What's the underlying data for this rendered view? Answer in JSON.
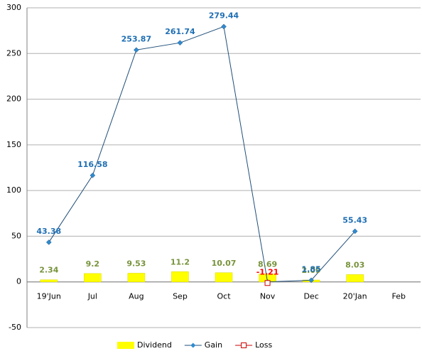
{
  "chart_data": {
    "type": "bar-line",
    "categories": [
      "19'Jun",
      "Jul",
      "Aug",
      "Sep",
      "Oct",
      "Nov",
      "Dec",
      "20'Jan",
      "Feb"
    ],
    "series": [
      {
        "name": "Dividend",
        "type": "bar",
        "color": "#ffff00",
        "label_color": "#77933c",
        "values": [
          2.34,
          9.2,
          9.53,
          11.2,
          10.07,
          8.69,
          2.09,
          8.03,
          null
        ]
      },
      {
        "name": "Gain",
        "type": "line",
        "color": "#1f4e79",
        "marker_color": "#2e8bd0",
        "label_color": "#1f6fb4",
        "values": [
          43.38,
          116.58,
          253.87,
          261.74,
          279.44,
          0,
          1.85,
          55.43,
          null
        ],
        "value_labels": [
          "43.38",
          "116.58",
          "253.87",
          "261.74",
          "279.44",
          null,
          "1.85",
          "55.43",
          null
        ]
      },
      {
        "name": "Loss",
        "type": "marker",
        "color": "#cc0000",
        "label_color": "#ff0000",
        "values": [
          null,
          null,
          null,
          null,
          null,
          -1.21,
          null,
          null,
          null
        ]
      }
    ],
    "ylim": [
      -50,
      300
    ],
    "yticks": [
      -50,
      0,
      50,
      100,
      150,
      200,
      250,
      300
    ],
    "grid": true,
    "legend": "bottom"
  }
}
